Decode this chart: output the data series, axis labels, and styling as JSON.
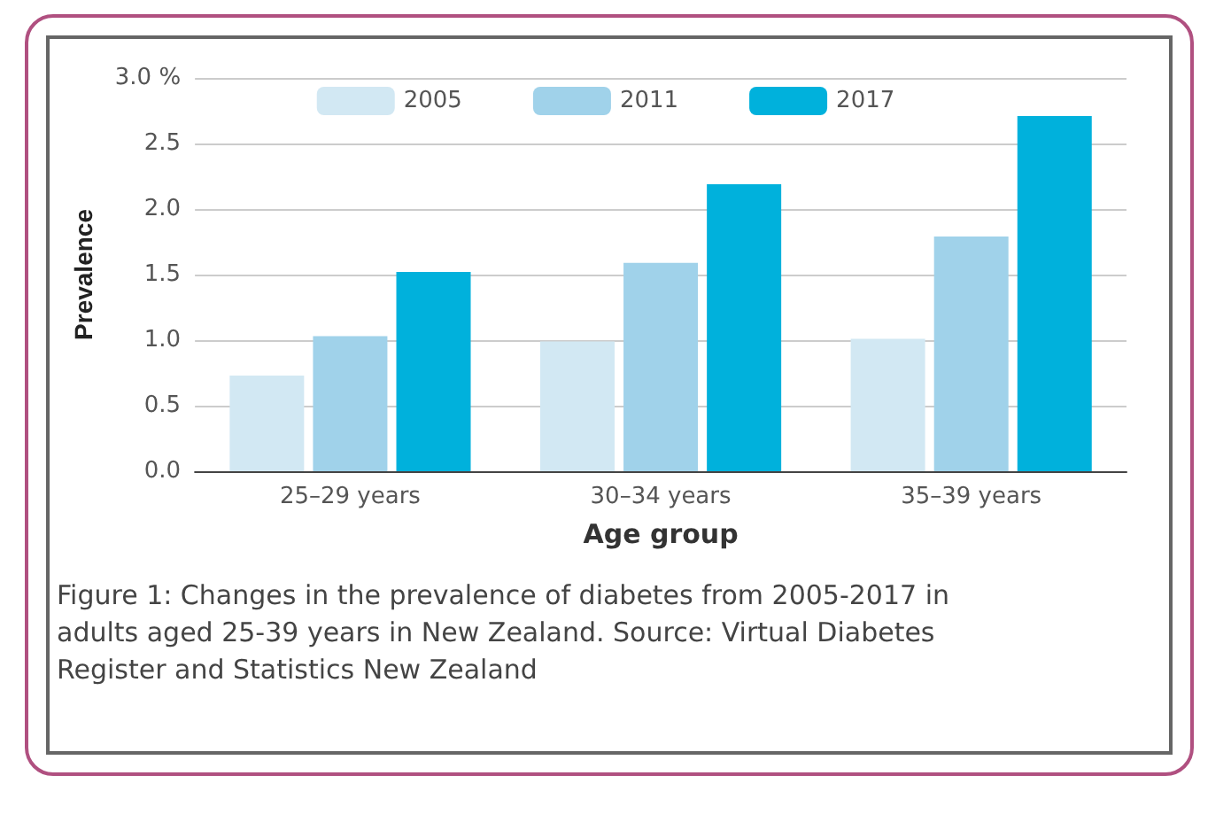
{
  "chart_data": {
    "type": "bar",
    "xlabel": "Age group",
    "ylabel": "Prevalence",
    "categories": [
      "25–29 years",
      "30–34 years",
      "35–39 years"
    ],
    "series": [
      {
        "name": "2005",
        "color": "#d2e8f3",
        "values": [
          0.73,
          0.99,
          1.01
        ]
      },
      {
        "name": "2011",
        "color": "#a0d2ea",
        "values": [
          1.03,
          1.59,
          1.79
        ]
      },
      {
        "name": "2017",
        "color": "#00b1dc",
        "values": [
          1.52,
          2.19,
          2.71
        ]
      }
    ],
    "ylim": [
      0,
      3
    ],
    "yticks": [
      {
        "value": 0,
        "label": "0.0"
      },
      {
        "value": 0.5,
        "label": "0.5"
      },
      {
        "value": 1,
        "label": "1.0"
      },
      {
        "value": 1.5,
        "label": "1.5"
      },
      {
        "value": 2,
        "label": "2.0"
      },
      {
        "value": 2.5,
        "label": "2.5"
      },
      {
        "value": 3,
        "label": "3.0 %"
      }
    ],
    "grid": "y",
    "legend": "top",
    "annotations": [
      "Figure 1: Changes in the prevalence of diabetes from 2005-2017 in adults aged 25-39 years in New Zealand. Source: Virtual Diabetes Register and Statistics New Zealand"
    ]
  }
}
